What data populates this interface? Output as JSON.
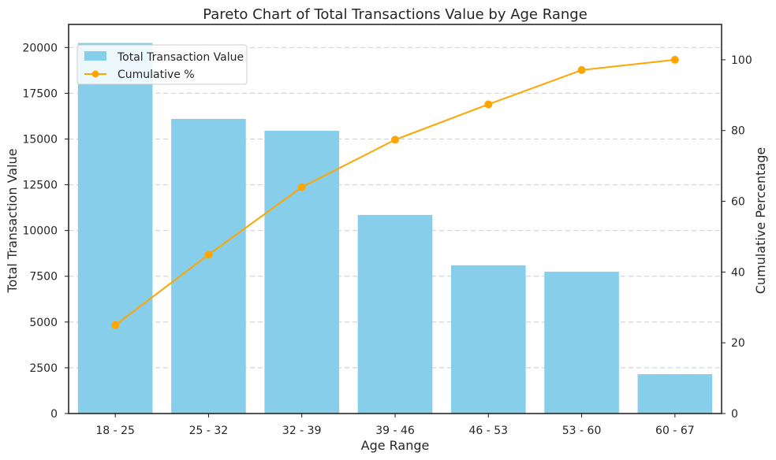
{
  "chart_data": {
    "type": "bar",
    "title": "Pareto Chart of Total Transactions Value by Age Range",
    "xlabel": "Age Range",
    "ylabel": "Total Transaction Value",
    "y2label": "Cumulative Percentage",
    "categories": [
      "18 - 25",
      "25 - 32",
      "32 - 39",
      "39 - 46",
      "46 - 53",
      "53 - 60",
      "60 - 67"
    ],
    "series": [
      {
        "name": "Total Transaction Value",
        "type": "bar",
        "axis": "left",
        "color": "#87CEEB",
        "values": [
          20250,
          16100,
          15450,
          10850,
          8100,
          7750,
          2150
        ]
      },
      {
        "name": "Cumulative %",
        "type": "line",
        "axis": "right",
        "color": "#FFA500",
        "values": [
          25.0,
          44.9,
          64.0,
          77.4,
          87.4,
          97.1,
          100.0
        ]
      }
    ],
    "ylim": [
      0,
      21262
    ],
    "y2lim": [
      0,
      110
    ],
    "yticks": [
      "0",
      "2500",
      "5000",
      "7500",
      "10000",
      "12500",
      "15000",
      "17500",
      "20000"
    ],
    "y2ticks": [
      "0",
      "20",
      "40",
      "60",
      "80",
      "100"
    ],
    "grid": "horizontal dashed",
    "legend_position": "top-left"
  }
}
